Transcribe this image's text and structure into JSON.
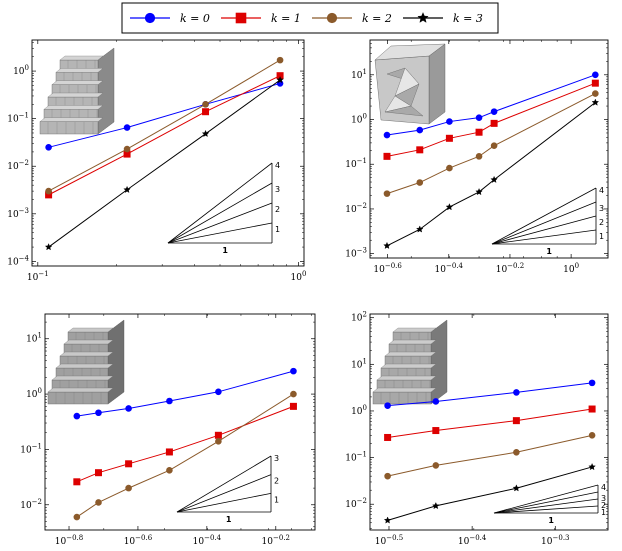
{
  "legend": {
    "entries": [
      {
        "label": "k = 0",
        "color": "#0000ff",
        "marker": "circle"
      },
      {
        "label": "k = 1",
        "color": "#dd0000",
        "marker": "square"
      },
      {
        "label": "k = 2",
        "color": "#8b5a2b",
        "marker": "circle"
      },
      {
        "label": "k = 3",
        "color": "#000000",
        "marker": "star"
      }
    ]
  },
  "chart_data": [
    {
      "type": "line",
      "xscale": "log",
      "yscale": "log",
      "xlim": [
        0.095,
        1.05
      ],
      "ylim": [
        8e-05,
        4.5
      ],
      "xticks": [
        0.1,
        1
      ],
      "xtick_labels": [
        "10^-1",
        "10^0"
      ],
      "yticks": [
        0.0001,
        0.001,
        0.01,
        0.1,
        1
      ],
      "ytick_labels": [
        "10^-4",
        "10^-3",
        "10^-2",
        "10^-1",
        "10^0"
      ],
      "inset_image": "stepped-block-structured-mesh",
      "slope_triangle": {
        "labels": [
          "4",
          "3",
          "2",
          "1"
        ],
        "base_label": "1"
      },
      "x": [
        0.11,
        0.22,
        0.44,
        0.85
      ],
      "series": [
        {
          "values": [
            0.025,
            0.065,
            0.2,
            0.55
          ]
        },
        {
          "values": [
            0.0025,
            0.018,
            0.14,
            0.8
          ]
        },
        {
          "values": [
            0.003,
            0.023,
            0.2,
            1.7
          ]
        },
        {
          "values": [
            0.0002,
            0.0032,
            0.048,
            0.65
          ]
        }
      ]
    },
    {
      "type": "line",
      "xscale": "log",
      "yscale": "log",
      "xlim": [
        0.22,
        1.32
      ],
      "ylim": [
        0.0008,
        60
      ],
      "xticks": [
        0.2512,
        0.3981,
        0.631,
        1
      ],
      "xtick_labels": [
        "10^-0.6",
        "10^-0.4",
        "10^-0.2",
        "10^0"
      ],
      "yticks": [
        0.001,
        0.01,
        0.1,
        1,
        10
      ],
      "ytick_labels": [
        "10^-3",
        "10^-2",
        "10^-1",
        "10^0",
        "10^1"
      ],
      "inset_image": "faceted-block-tetrahedral-mesh",
      "slope_triangle": {
        "labels": [
          "4",
          "3",
          "2",
          "1"
        ],
        "base_label": "1"
      },
      "x": [
        0.25,
        0.32,
        0.4,
        0.5,
        0.56,
        1.2
      ],
      "series": [
        {
          "values": [
            0.45,
            0.58,
            0.9,
            1.1,
            1.5,
            10
          ]
        },
        {
          "values": [
            0.15,
            0.21,
            0.38,
            0.52,
            0.82,
            6.5
          ]
        },
        {
          "values": [
            0.022,
            0.039,
            0.082,
            0.15,
            0.26,
            3.8
          ]
        },
        {
          "values": [
            0.0015,
            0.0035,
            0.011,
            0.024,
            0.045,
            2.4
          ]
        }
      ]
    },
    {
      "type": "line",
      "xscale": "log",
      "yscale": "log",
      "xlim": [
        0.135,
        0.82
      ],
      "ylim": [
        0.0035,
        28
      ],
      "xticks": [
        0.1585,
        0.2512,
        0.3981,
        0.631
      ],
      "xtick_labels": [
        "10^-0.8",
        "10^-0.6",
        "10^-0.4",
        "10^-0.2"
      ],
      "yticks": [
        0.01,
        0.1,
        1,
        10
      ],
      "ytick_labels": [
        "10^-2",
        "10^-1",
        "10^0",
        "10^1"
      ],
      "inset_image": "stepped-block-polyhedral-mesh",
      "slope_triangle": {
        "labels": [
          "3",
          "2",
          "1"
        ],
        "base_label": "1"
      },
      "x": [
        0.167,
        0.193,
        0.236,
        0.31,
        0.43,
        0.71
      ],
      "series": [
        {
          "values": [
            0.4,
            0.46,
            0.55,
            0.75,
            1.1,
            2.6
          ]
        },
        {
          "values": [
            0.026,
            0.038,
            0.055,
            0.09,
            0.18,
            0.6
          ]
        },
        {
          "values": [
            0.006,
            0.011,
            0.02,
            0.042,
            0.14,
            1.0
          ]
        }
      ]
    },
    {
      "type": "line",
      "xscale": "log",
      "yscale": "log",
      "xlim": [
        0.3,
        0.58
      ],
      "ylim": [
        0.0028,
        120
      ],
      "xticks": [
        0.3162,
        0.3981,
        0.5012
      ],
      "xtick_labels": [
        "10^-0.5",
        "10^-0.4",
        "10^-0.3"
      ],
      "yticks": [
        0.01,
        0.1,
        1,
        10,
        100
      ],
      "ytick_labels": [
        "10^-2",
        "10^-1",
        "10^0",
        "10^1",
        "10^2"
      ],
      "inset_image": "stepped-block-voronoi-mesh",
      "slope_triangle": {
        "labels": [
          "4",
          "3",
          "2",
          "1"
        ],
        "base_label": "1"
      },
      "x": [
        0.315,
        0.36,
        0.45,
        0.555
      ],
      "series": [
        {
          "values": [
            1.3,
            1.6,
            2.5,
            4.0
          ]
        },
        {
          "values": [
            0.27,
            0.38,
            0.62,
            1.1
          ]
        },
        {
          "values": [
            0.04,
            0.068,
            0.13,
            0.3
          ]
        },
        {
          "values": [
            0.0045,
            0.0092,
            0.022,
            0.063
          ]
        }
      ]
    }
  ]
}
